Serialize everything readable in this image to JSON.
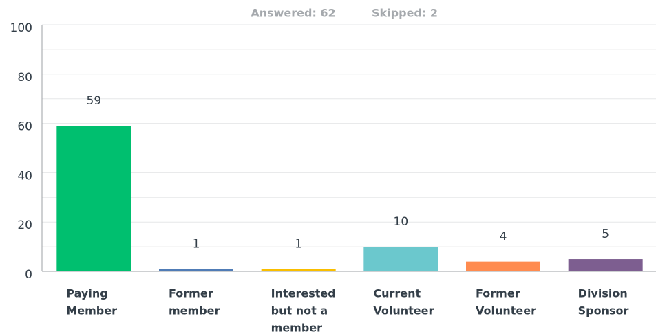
{
  "chart_data": {
    "type": "bar",
    "subtitle_parts": [
      "Answered: 62",
      "Skipped: 2"
    ],
    "categories": [
      [
        "Paying",
        "Member"
      ],
      [
        "Former",
        "member"
      ],
      [
        "Interested",
        "but not a",
        "member"
      ],
      [
        "Current",
        "Volunteer"
      ],
      [
        "Former",
        "Volunteer"
      ],
      [
        "Division",
        "Sponsor"
      ]
    ],
    "values": [
      59,
      1,
      1,
      10,
      4,
      5
    ],
    "colors": [
      "#00bf6f",
      "#507cb6",
      "#f9be00",
      "#6bc8cd",
      "#ff8b4f",
      "#7d5e90"
    ],
    "ylim": [
      0,
      100
    ],
    "yticks": [
      0,
      20,
      40,
      60,
      80,
      100
    ],
    "ygrid": [
      0,
      10,
      20,
      30,
      40,
      50,
      60,
      70,
      80,
      90,
      100
    ],
    "grid": true
  }
}
